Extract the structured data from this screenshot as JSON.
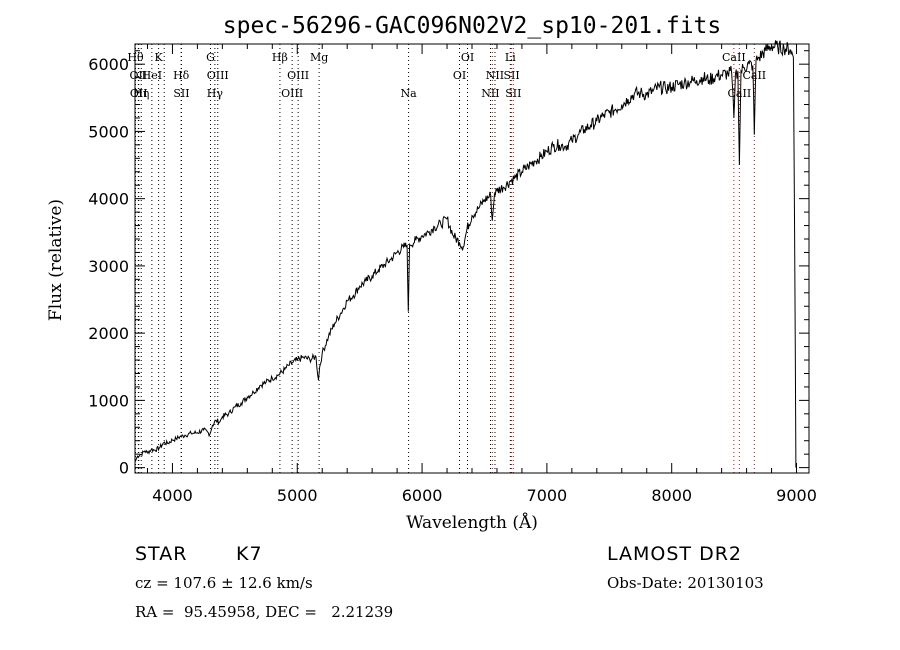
{
  "chart_data": {
    "type": "line",
    "title": "spec-56296-GAC096N02V2_sp10-201.fits",
    "xlabel": "Wavelength (Å)",
    "ylabel": "Flux (relative)",
    "xlim": [
      3700,
      9100
    ],
    "ylim": [
      -80,
      6300
    ],
    "xticks": [
      4000,
      5000,
      6000,
      7000,
      8000,
      9000
    ],
    "yticks": [
      0,
      1000,
      2000,
      3000,
      4000,
      5000,
      6000
    ],
    "grid": false,
    "series": [
      {
        "points": [
          [
            3700,
            80
          ],
          [
            3720,
            170
          ],
          [
            3750,
            200
          ],
          [
            3780,
            250
          ],
          [
            3800,
            220
          ],
          [
            3830,
            270
          ],
          [
            3860,
            260
          ],
          [
            3900,
            300
          ],
          [
            3930,
            370
          ],
          [
            3960,
            360
          ],
          [
            4000,
            410
          ],
          [
            4030,
            430
          ],
          [
            4060,
            460
          ],
          [
            4100,
            480
          ],
          [
            4150,
            510
          ],
          [
            4200,
            520
          ],
          [
            4250,
            560
          ],
          [
            4300,
            500
          ],
          [
            4320,
            630
          ],
          [
            4350,
            700
          ],
          [
            4380,
            680
          ],
          [
            4400,
            760
          ],
          [
            4450,
            800
          ],
          [
            4500,
            900
          ],
          [
            4550,
            960
          ],
          [
            4600,
            1050
          ],
          [
            4650,
            1120
          ],
          [
            4700,
            1220
          ],
          [
            4750,
            1270
          ],
          [
            4800,
            1330
          ],
          [
            4850,
            1380
          ],
          [
            4900,
            1460
          ],
          [
            4930,
            1520
          ],
          [
            4960,
            1560
          ],
          [
            5000,
            1600
          ],
          [
            5050,
            1640
          ],
          [
            5100,
            1610
          ],
          [
            5150,
            1650
          ],
          [
            5170,
            1300
          ],
          [
            5180,
            1500
          ],
          [
            5200,
            1700
          ],
          [
            5250,
            1950
          ],
          [
            5300,
            2150
          ],
          [
            5350,
            2300
          ],
          [
            5400,
            2480
          ],
          [
            5450,
            2560
          ],
          [
            5500,
            2700
          ],
          [
            5550,
            2770
          ],
          [
            5600,
            2850
          ],
          [
            5650,
            2940
          ],
          [
            5700,
            3020
          ],
          [
            5750,
            3100
          ],
          [
            5800,
            3200
          ],
          [
            5850,
            3280
          ],
          [
            5880,
            3300
          ],
          [
            5890,
            2320
          ],
          [
            5900,
            3320
          ],
          [
            5950,
            3380
          ],
          [
            6000,
            3450
          ],
          [
            6050,
            3500
          ],
          [
            6100,
            3580
          ],
          [
            6150,
            3620
          ],
          [
            6200,
            3700
          ],
          [
            6250,
            3450
          ],
          [
            6300,
            3350
          ],
          [
            6330,
            3280
          ],
          [
            6360,
            3550
          ],
          [
            6400,
            3750
          ],
          [
            6450,
            3850
          ],
          [
            6500,
            3980
          ],
          [
            6550,
            4050
          ],
          [
            6563,
            3680
          ],
          [
            6580,
            4080
          ],
          [
            6600,
            4120
          ],
          [
            6650,
            4170
          ],
          [
            6700,
            4250
          ],
          [
            6750,
            4320
          ],
          [
            6800,
            4400
          ],
          [
            6850,
            4480
          ],
          [
            6900,
            4560
          ],
          [
            6950,
            4620
          ],
          [
            7000,
            4700
          ],
          [
            7050,
            4780
          ],
          [
            7100,
            4800
          ],
          [
            7150,
            4780
          ],
          [
            7200,
            4860
          ],
          [
            7250,
            4950
          ],
          [
            7300,
            5030
          ],
          [
            7350,
            5090
          ],
          [
            7400,
            5150
          ],
          [
            7450,
            5230
          ],
          [
            7500,
            5280
          ],
          [
            7550,
            5330
          ],
          [
            7600,
            5400
          ],
          [
            7650,
            5480
          ],
          [
            7700,
            5560
          ],
          [
            7750,
            5570
          ],
          [
            7800,
            5550
          ],
          [
            7850,
            5600
          ],
          [
            7900,
            5660
          ],
          [
            7950,
            5640
          ],
          [
            8000,
            5660
          ],
          [
            8050,
            5700
          ],
          [
            8100,
            5720
          ],
          [
            8150,
            5740
          ],
          [
            8200,
            5760
          ],
          [
            8250,
            5800
          ],
          [
            8300,
            5760
          ],
          [
            8350,
            5820
          ],
          [
            8400,
            5840
          ],
          [
            8450,
            5860
          ],
          [
            8480,
            5880
          ],
          [
            8498,
            5200
          ],
          [
            8510,
            5850
          ],
          [
            8530,
            5900
          ],
          [
            8542,
            4500
          ],
          [
            8555,
            5900
          ],
          [
            8580,
            5950
          ],
          [
            8620,
            6000
          ],
          [
            8650,
            5980
          ],
          [
            8662,
            4950
          ],
          [
            8675,
            6050
          ],
          [
            8700,
            6100
          ],
          [
            8750,
            6200
          ],
          [
            8800,
            6270
          ],
          [
            8850,
            6250
          ],
          [
            8900,
            6240
          ],
          [
            8950,
            6220
          ],
          [
            8975,
            6100
          ],
          [
            8985,
            3500
          ],
          [
            8995,
            0
          ]
        ]
      }
    ],
    "lines": [
      {
        "x": 3704,
        "label": "Hθ",
        "row": 0,
        "color": "#000000"
      },
      {
        "x": 3727,
        "label": "OII",
        "row": 1,
        "color": "#000000"
      },
      {
        "x": 3730,
        "label": "OII",
        "row": 2,
        "color": "#000000"
      },
      {
        "x": 3750,
        "label": "Hη",
        "row": 2,
        "color": "#000000"
      },
      {
        "x": 3835,
        "label": "HeI",
        "row": 1,
        "color": "#000000"
      },
      {
        "x": 3889,
        "label": "K",
        "row": 0,
        "color": "#000000"
      },
      {
        "x": 3934,
        "label": "",
        "row": 0,
        "color": "#000000"
      },
      {
        "x": 4070,
        "label": "Hδ",
        "row": 1,
        "color": "#000000"
      },
      {
        "x": 4072,
        "label": "SII",
        "row": 2,
        "color": "#000000"
      },
      {
        "x": 4305,
        "label": "G",
        "row": 0,
        "color": "#000000"
      },
      {
        "x": 4340,
        "label": "Hγ",
        "row": 2,
        "color": "#000000"
      },
      {
        "x": 4363,
        "label": "OIII",
        "row": 1,
        "color": "#000000"
      },
      {
        "x": 4861,
        "label": "Hβ",
        "row": 0,
        "color": "#000000"
      },
      {
        "x": 4959,
        "label": "OIII",
        "row": 2,
        "color": "#000000"
      },
      {
        "x": 5007,
        "label": "OIII",
        "row": 1,
        "color": "#000000"
      },
      {
        "x": 5175,
        "label": "Mg",
        "row": 0,
        "color": "#000000"
      },
      {
        "x": 5892,
        "label": "Na",
        "row": 2,
        "color": "#000000"
      },
      {
        "x": 6300,
        "label": "OI",
        "row": 1,
        "color": "#000000"
      },
      {
        "x": 6364,
        "label": "OI",
        "row": 0,
        "color": "#000000"
      },
      {
        "x": 6548,
        "label": "NII",
        "row": 2,
        "color": "#000000"
      },
      {
        "x": 6563,
        "label": "",
        "row": 0,
        "color": "#cc0000"
      },
      {
        "x": 6584,
        "label": "NII",
        "row": 1,
        "color": "#000000"
      },
      {
        "x": 6707,
        "label": "Li",
        "row": 0,
        "color": "#000000"
      },
      {
        "x": 6717,
        "label": "SII",
        "row": 1,
        "color": "#cc0000"
      },
      {
        "x": 6731,
        "label": "SII",
        "row": 2,
        "color": "#cc0000"
      },
      {
        "x": 8498,
        "label": "CaII",
        "row": 0,
        "color": "#cc0000"
      },
      {
        "x": 8542,
        "label": "CaII",
        "row": 2,
        "color": "#cc0000"
      },
      {
        "x": 8662,
        "label": "CaII",
        "row": 1,
        "color": "#cc0000"
      }
    ]
  },
  "footer": {
    "object_type": "STAR",
    "subclass": "K7",
    "survey": "LAMOST DR2",
    "cz": "cz = 107.6 ± 12.6 km/s",
    "obs_date": "Obs-Date: 20130103",
    "coords": "RA =  95.45958, DEC =   2.21239"
  }
}
